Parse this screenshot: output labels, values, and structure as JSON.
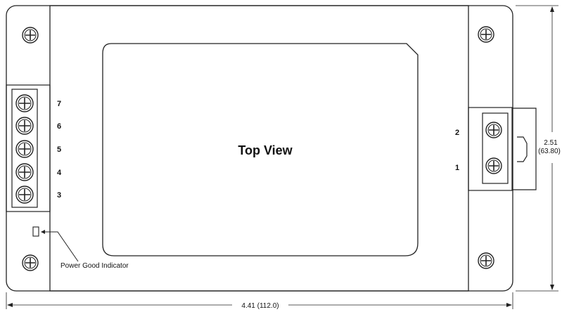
{
  "center_label": "Top View",
  "indicator_label": "Power Good Indicator",
  "left_pins": [
    "7",
    "6",
    "5",
    "4",
    "3"
  ],
  "right_pins": [
    "2",
    "1"
  ],
  "dim_height_in": "2.51",
  "dim_height_mm": "(63.80)",
  "dim_width": "4.41 (112.0)"
}
